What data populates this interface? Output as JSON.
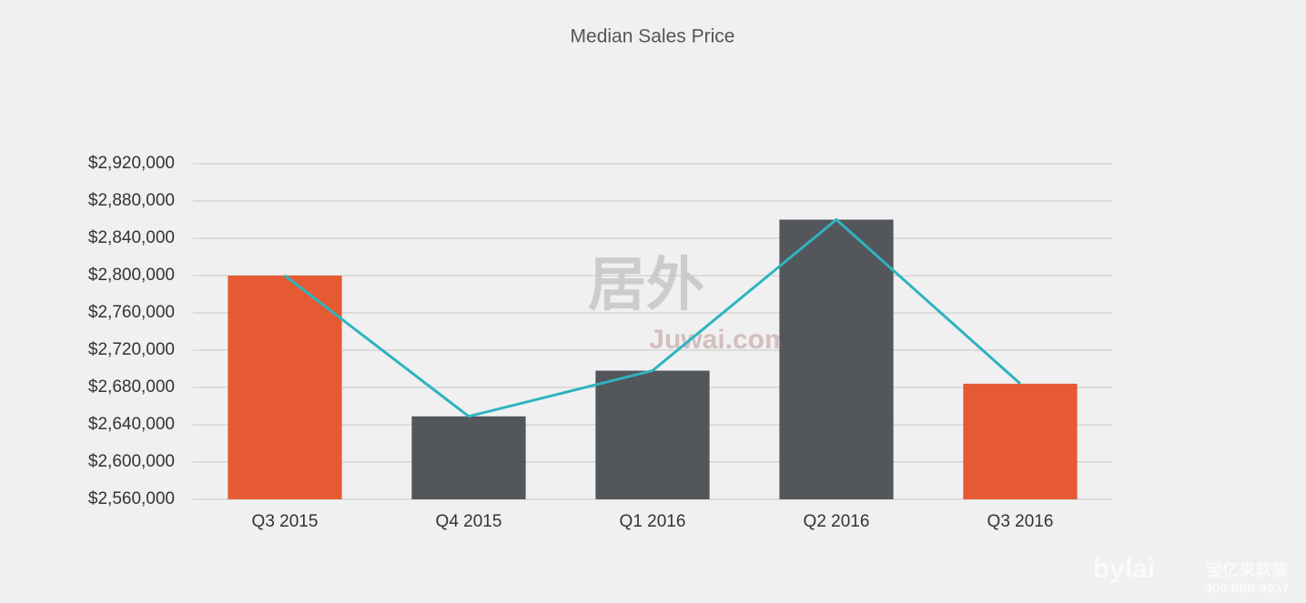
{
  "chart_data": {
    "type": "bar",
    "title": "Median Sales Price",
    "categories": [
      "Q3 2015",
      "Q4 2015",
      "Q1 2016",
      "Q2 2016",
      "Q3 2016"
    ],
    "values": [
      2800000,
      2649000,
      2698000,
      2860000,
      2684000
    ],
    "colors": [
      "#e55a33",
      "#53565a",
      "#53565a",
      "#53565a",
      "#e55a33"
    ],
    "line": {
      "color": "#2fb3c0",
      "values": [
        2800000,
        2649000,
        2698000,
        2860000,
        2684000
      ]
    },
    "ylim": [
      2560000,
      2920000
    ],
    "yticks": [
      {
        "value": 2560000,
        "label": "$2,560,000"
      },
      {
        "value": 2600000,
        "label": "$2,600,000"
      },
      {
        "value": 2640000,
        "label": "$2,640,000"
      },
      {
        "value": 2680000,
        "label": "$2,680,000"
      },
      {
        "value": 2720000,
        "label": "$2,720,000"
      },
      {
        "value": 2760000,
        "label": "$2,760,000"
      },
      {
        "value": 2800000,
        "label": "$2,800,000"
      },
      {
        "value": 2840000,
        "label": "$2,840,000"
      },
      {
        "value": 2880000,
        "label": "$2,880,000"
      },
      {
        "value": 2920000,
        "label": "$2,920,000"
      }
    ],
    "grid": true,
    "watermarks": [
      "居外",
      "Juwai.com",
      "bylai",
      "宝亿来软装",
      "400-888-9937"
    ]
  }
}
